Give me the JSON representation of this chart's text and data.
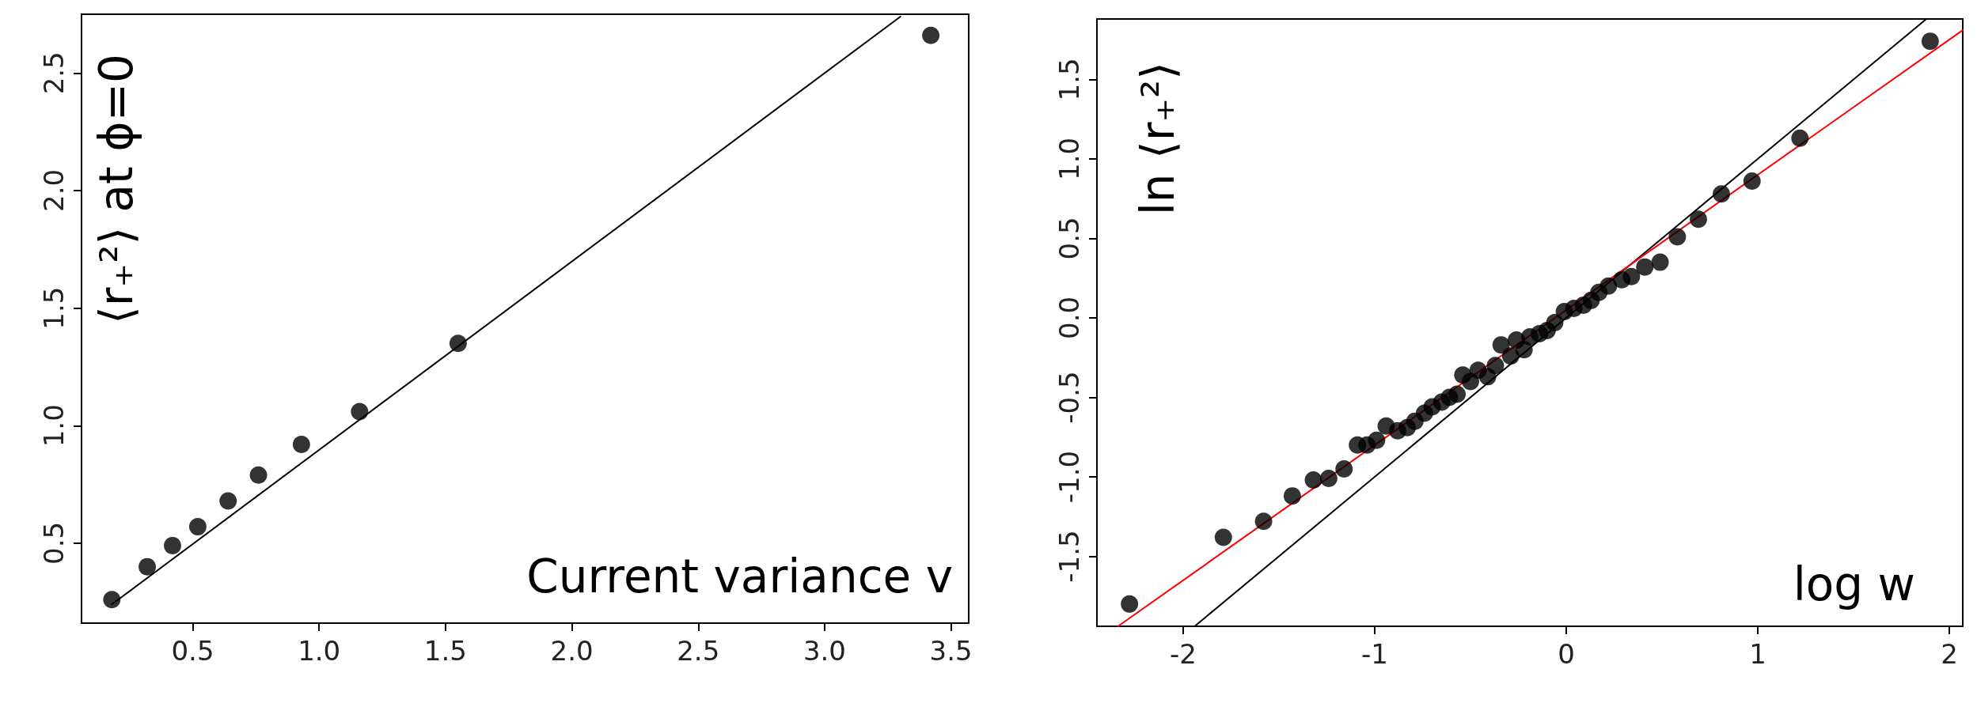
{
  "chart_data": [
    {
      "type": "scatter",
      "xlabel": "Current variance v",
      "ylabel": "⟨r₊²⟩ at ϕ=0",
      "xlim": [
        0.06,
        3.57
      ],
      "ylim": [
        0.16,
        2.75
      ],
      "xticks": [
        0.5,
        {
          "value": 1,
          "label": "1.0"
        },
        1.5,
        {
          "value": 2,
          "label": "2.0"
        },
        2.5,
        {
          "value": 3,
          "label": "3.0"
        },
        3.5
      ],
      "yticks": [
        0.5,
        {
          "value": 1,
          "label": "1.0"
        },
        1.5,
        {
          "value": 2,
          "label": "2.0"
        },
        2.5
      ],
      "series": [
        {
          "color": "#000000",
          "marker": "circle",
          "x": [
            0.18,
            0.32,
            0.42,
            0.52,
            0.64,
            0.76,
            0.93,
            1.16,
            1.55,
            3.42
          ],
          "values": [
            0.26,
            0.4,
            0.49,
            0.57,
            0.68,
            0.79,
            0.92,
            1.06,
            1.35,
            2.66
          ]
        },
        {
          "type": "line",
          "color": "#000000",
          "marker": "none",
          "line_style": "solid",
          "x": [
            0.18,
            3.3
          ],
          "values": [
            0.24,
            2.74
          ]
        }
      ]
    },
    {
      "type": "scatter",
      "xlabel": "log w",
      "ylabel": "ln ⟨r₊²⟩",
      "xlim": [
        -2.45,
        2.07
      ],
      "ylim": [
        -1.94,
        1.88
      ],
      "xticks": [
        -2,
        -1,
        0,
        1,
        2
      ],
      "yticks": [
        -1.5,
        {
          "value": -1,
          "label": "-1.0"
        },
        -0.5,
        {
          "value": 0,
          "label": "0.0"
        },
        0.5,
        {
          "value": 1,
          "label": "1.0"
        },
        1.5
      ],
      "series": [
        {
          "color": "#000000",
          "marker": "circle",
          "x": [
            -2.28,
            -1.79,
            -1.58,
            -1.43,
            -1.32,
            -1.24,
            -1.16,
            -1.09,
            -1.04,
            -0.99,
            -0.94,
            -0.88,
            -0.83,
            -0.79,
            -0.74,
            -0.7,
            -0.65,
            -0.61,
            -0.57,
            -0.54,
            -0.5,
            -0.46,
            -0.41,
            -0.37,
            -0.34,
            -0.29,
            -0.26,
            -0.22,
            -0.19,
            -0.14,
            -0.1,
            -0.06,
            -0.01,
            0.04,
            0.09,
            0.13,
            0.17,
            0.22,
            0.29,
            0.34,
            0.41,
            0.49,
            0.58,
            0.69,
            0.81,
            0.97,
            1.22,
            1.9
          ],
          "values": [
            -1.8,
            -1.38,
            -1.28,
            -1.12,
            -1.02,
            -1.01,
            -0.95,
            -0.8,
            -0.8,
            -0.77,
            -0.68,
            -0.71,
            -0.69,
            -0.65,
            -0.6,
            -0.56,
            -0.53,
            -0.5,
            -0.48,
            -0.36,
            -0.4,
            -0.33,
            -0.37,
            -0.3,
            -0.17,
            -0.24,
            -0.14,
            -0.2,
            -0.12,
            -0.1,
            -0.08,
            -0.03,
            0.04,
            0.06,
            0.08,
            0.11,
            0.16,
            0.2,
            0.24,
            0.26,
            0.32,
            0.35,
            0.51,
            0.62,
            0.78,
            0.86,
            1.13,
            1.74
          ]
        },
        {
          "type": "line",
          "color": "#000000",
          "marker": "none",
          "line_style": "solid",
          "x": [
            -1.94,
            1.88
          ],
          "values": [
            -1.94,
            1.88
          ]
        },
        {
          "type": "line",
          "color": "#ff0000",
          "marker": "none",
          "line_style": "solid",
          "x": [
            -2.34,
            2.07
          ],
          "values": [
            -1.94,
            1.81
          ]
        }
      ]
    }
  ]
}
